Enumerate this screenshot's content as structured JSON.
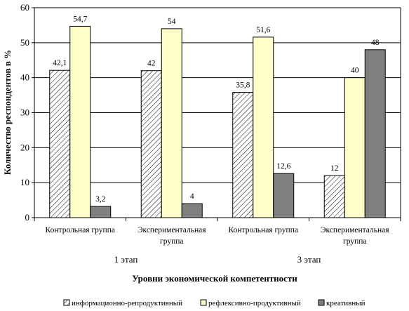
{
  "chart_data": {
    "type": "bar",
    "categories": [
      [
        "Контрольная группа"
      ],
      [
        "Экспериментальная",
        "группа"
      ],
      [
        "Контрольная группа"
      ],
      [
        "Экспериментальная",
        "группа"
      ]
    ],
    "stages": [
      "1 этап",
      "3 этап"
    ],
    "series": [
      {
        "name": "информационно-репродуктивный",
        "values": [
          42.1,
          42,
          35.8,
          12
        ],
        "labels": [
          "42,1",
          "42",
          "35,8",
          "12"
        ],
        "color": "#ffffff",
        "pattern": "diagonal-hatch"
      },
      {
        "name": "рефлексивно-продуктивный",
        "values": [
          54.7,
          54,
          51.6,
          40
        ],
        "labels": [
          "54,7",
          "54",
          "51,6",
          "40"
        ],
        "color": "#ffffcc"
      },
      {
        "name": "креативный",
        "values": [
          3.2,
          4,
          12.6,
          48
        ],
        "labels": [
          "3,2",
          "4",
          "12,6",
          "48"
        ],
        "color": "#808080"
      }
    ],
    "ylim": [
      0,
      60
    ],
    "yticks": [
      0,
      10,
      20,
      30,
      40,
      50,
      60
    ],
    "xlabel": "Уровни экономической компетентности",
    "ylabel": "Количество респондентов в %",
    "grid": true,
    "legend_position": "bottom"
  }
}
